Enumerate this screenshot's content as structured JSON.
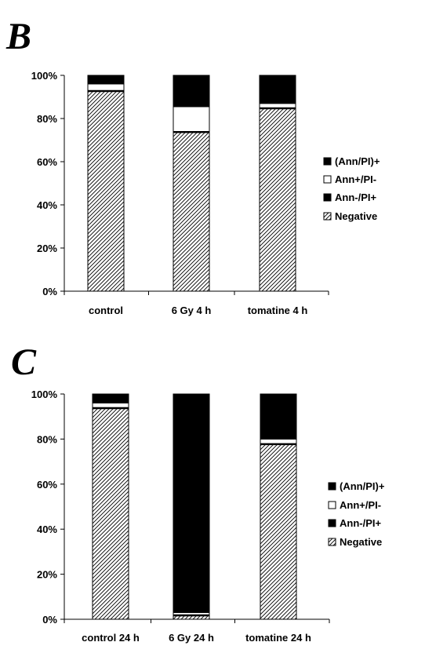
{
  "chart_data": [
    {
      "panel": "B",
      "type": "bar",
      "stacked": true,
      "categories": [
        "control",
        "6 Gy 4 h",
        "tomatine 4 h"
      ],
      "series": [
        {
          "name": "Negative",
          "values": [
            92.5,
            73.5,
            84.5
          ],
          "fill": "hatch"
        },
        {
          "name": "Ann-/PI+",
          "values": [
            0.5,
            0.5,
            0.5
          ],
          "fill": "#000000"
        },
        {
          "name": "Ann+/PI-",
          "values": [
            3,
            11.5,
            2
          ],
          "fill": "#ffffff"
        },
        {
          "name": "(Ann/PI)+",
          "values": [
            4,
            14.5,
            13
          ],
          "fill": "#000000"
        }
      ],
      "legend_order": [
        "(Ann/PI)+",
        "Ann+/PI-",
        "Ann-/PI+",
        "Negative"
      ],
      "yticks": [
        "0%",
        "20%",
        "40%",
        "60%",
        "80%",
        "100%"
      ],
      "ylim": [
        0,
        100
      ],
      "grid": false,
      "legend_position": "right"
    },
    {
      "panel": "C",
      "type": "bar",
      "stacked": true,
      "categories": [
        "control 24 h",
        "6 Gy 24 h",
        "tomatine 24 h"
      ],
      "series": [
        {
          "name": "Negative",
          "values": [
            93.5,
            1.5,
            77.5
          ],
          "fill": "hatch"
        },
        {
          "name": "Ann-/PI+",
          "values": [
            0.5,
            0.5,
            0.5
          ],
          "fill": "#000000"
        },
        {
          "name": "Ann+/PI-",
          "values": [
            2,
            1,
            2
          ],
          "fill": "#ffffff"
        },
        {
          "name": "(Ann/PI)+",
          "values": [
            4,
            97,
            20
          ],
          "fill": "#000000"
        }
      ],
      "legend_order": [
        "(Ann/PI)+",
        "Ann+/PI-",
        "Ann-/PI+",
        "Negative"
      ],
      "yticks": [
        "0%",
        "20%",
        "40%",
        "60%",
        "80%",
        "100%"
      ],
      "ylim": [
        0,
        100
      ],
      "grid": false,
      "legend_position": "right"
    }
  ]
}
